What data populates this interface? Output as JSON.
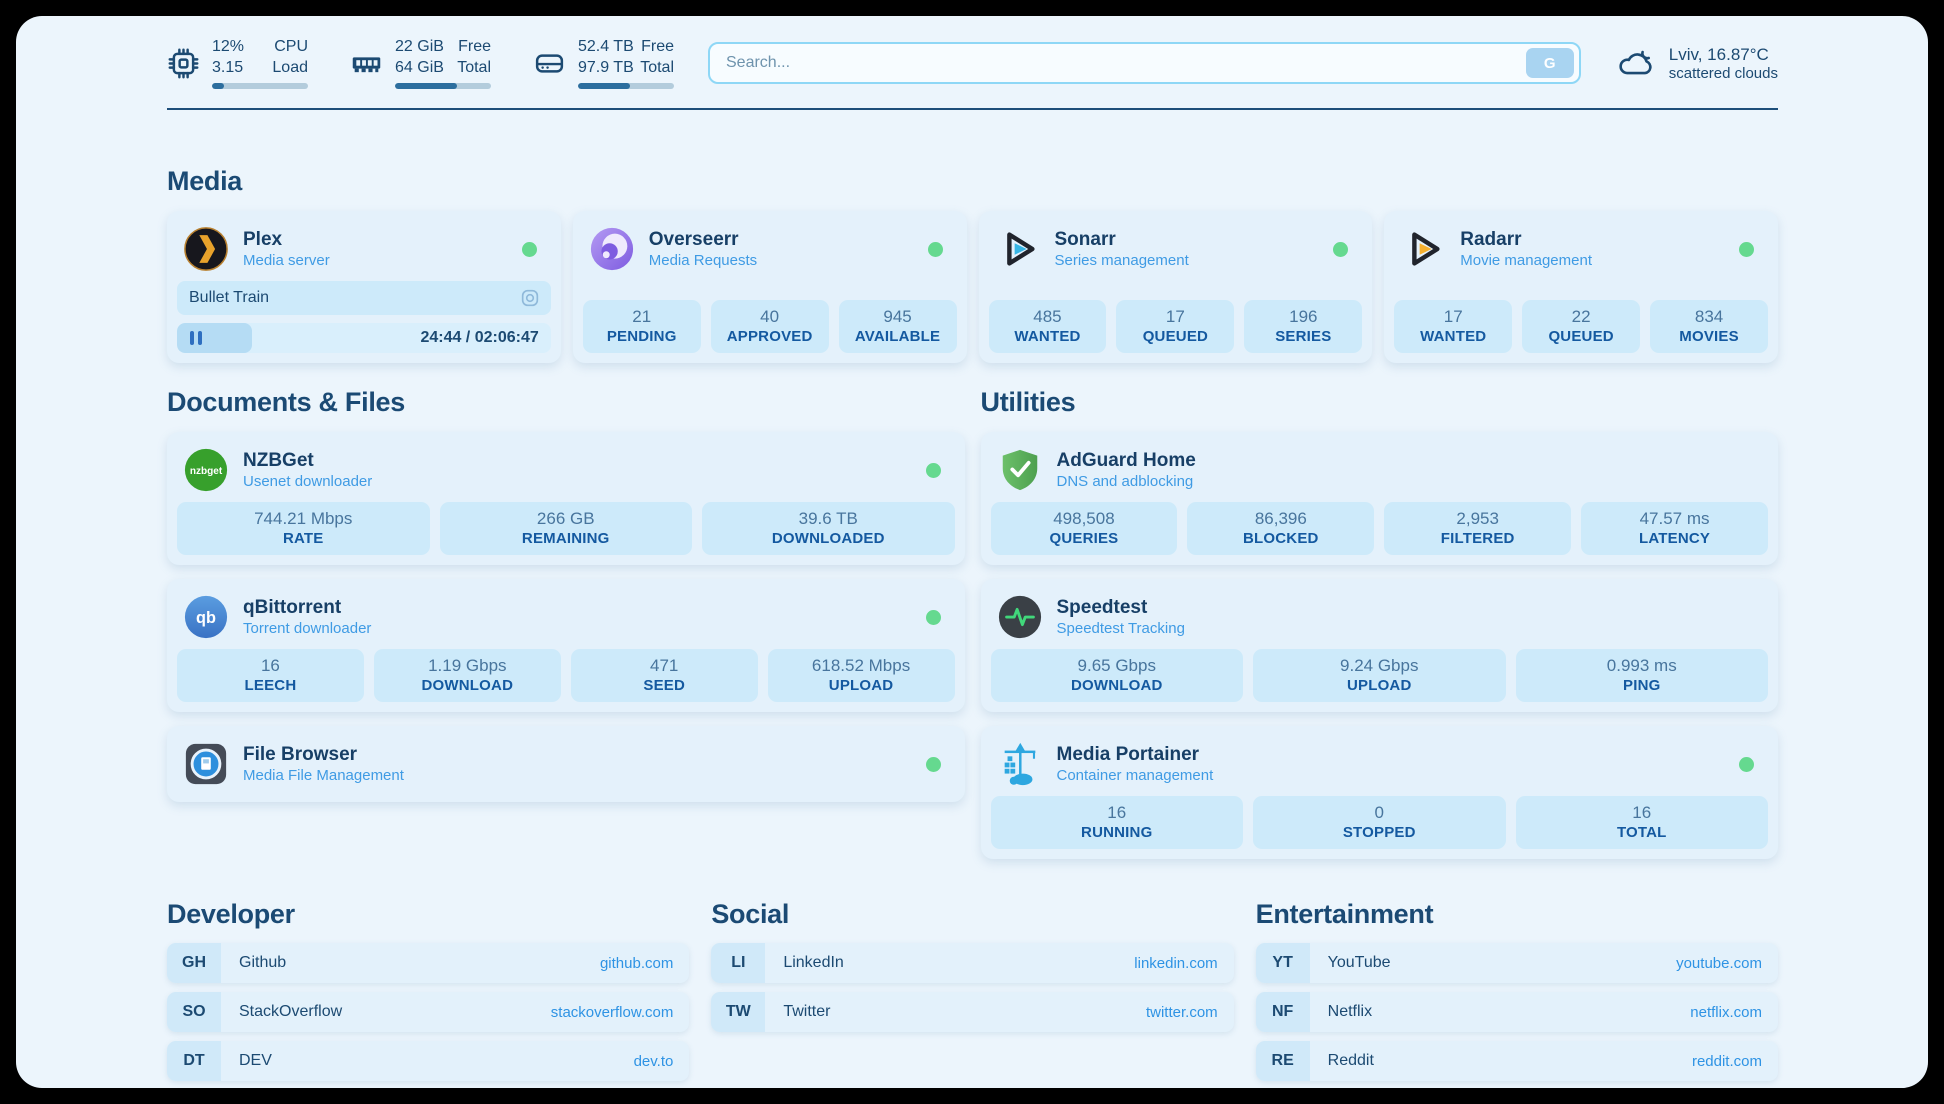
{
  "topbar": {
    "cpu": {
      "icon": "cpu-icon",
      "value_top": "12%",
      "value_bottom": "3.15",
      "label_top": "CPU",
      "label_bottom": "Load",
      "progress": 13
    },
    "ram": {
      "icon": "ram-icon",
      "value_top": "22 GiB",
      "value_bottom": "64 GiB",
      "label_top": "Free",
      "label_bottom": "Total",
      "progress": 65
    },
    "disk": {
      "icon": "disk-icon",
      "value_top": "52.4 TB",
      "value_bottom": "97.9 TB",
      "label_top": "Free",
      "label_bottom": "Total",
      "progress": 54
    },
    "search": {
      "placeholder": "Search...",
      "button_label": "G"
    },
    "weather": {
      "icon": "cloud-icon",
      "location": "Lviv, 16.87°C",
      "condition": "scattered clouds"
    }
  },
  "colors": {
    "status_green": "#65d98f",
    "link_blue": "#2e93e4",
    "navy": "#1c4a72",
    "stat_box": "#cdeafa"
  },
  "media": {
    "title": "Media",
    "plex": {
      "icon": "plex-icon",
      "name": "Plex",
      "desc": "Media server",
      "now_playing": "Bullet Train",
      "time": "24:44 / 02:06:47",
      "progress": 20
    },
    "overseerr": {
      "icon": "overseerr-icon",
      "name": "Overseerr",
      "desc": "Media Requests",
      "stats": [
        {
          "value": "21",
          "label": "PENDING"
        },
        {
          "value": "40",
          "label": "APPROVED"
        },
        {
          "value": "945",
          "label": "AVAILABLE"
        }
      ]
    },
    "sonarr": {
      "icon": "sonarr-icon",
      "name": "Sonarr",
      "desc": "Series management",
      "stats": [
        {
          "value": "485",
          "label": "WANTED"
        },
        {
          "value": "17",
          "label": "QUEUED"
        },
        {
          "value": "196",
          "label": "SERIES"
        }
      ]
    },
    "radarr": {
      "icon": "radarr-icon",
      "name": "Radarr",
      "desc": "Movie management",
      "stats": [
        {
          "value": "17",
          "label": "WANTED"
        },
        {
          "value": "22",
          "label": "QUEUED"
        },
        {
          "value": "834",
          "label": "MOVIES"
        }
      ]
    }
  },
  "documents": {
    "title": "Documents & Files",
    "nzbget": {
      "icon": "nzbget-icon",
      "name": "NZBGet",
      "desc": "Usenet downloader",
      "stats": [
        {
          "value": "744.21 Mbps",
          "label": "RATE"
        },
        {
          "value": "266 GB",
          "label": "REMAINING"
        },
        {
          "value": "39.6 TB",
          "label": "DOWNLOADED"
        }
      ]
    },
    "qbittorrent": {
      "icon": "qbittorrent-icon",
      "name": "qBittorrent",
      "desc": "Torrent downloader",
      "stats": [
        {
          "value": "16",
          "label": "LEECH"
        },
        {
          "value": "1.19 Gbps",
          "label": "DOWNLOAD"
        },
        {
          "value": "471",
          "label": "SEED"
        },
        {
          "value": "618.52 Mbps",
          "label": "UPLOAD"
        }
      ]
    },
    "filebrowser": {
      "icon": "filebrowser-icon",
      "name": "File Browser",
      "desc": "Media File Management"
    }
  },
  "utilities": {
    "title": "Utilities",
    "adguard": {
      "icon": "adguard-icon",
      "name": "AdGuard Home",
      "desc": "DNS and adblocking",
      "stats": [
        {
          "value": "498,508",
          "label": "QUERIES"
        },
        {
          "value": "86,396",
          "label": "BLOCKED"
        },
        {
          "value": "2,953",
          "label": "FILTERED"
        },
        {
          "value": "47.57 ms",
          "label": "LATENCY"
        }
      ]
    },
    "speedtest": {
      "icon": "speedtest-icon",
      "name": "Speedtest",
      "desc": "Speedtest Tracking",
      "stats": [
        {
          "value": "9.65 Gbps",
          "label": "DOWNLOAD"
        },
        {
          "value": "9.24 Gbps",
          "label": "UPLOAD"
        },
        {
          "value": "0.993 ms",
          "label": "PING"
        }
      ]
    },
    "portainer": {
      "icon": "portainer-icon",
      "name": "Media Portainer",
      "desc": "Container management",
      "stats": [
        {
          "value": "16",
          "label": "RUNNING"
        },
        {
          "value": "0",
          "label": "STOPPED"
        },
        {
          "value": "16",
          "label": "TOTAL"
        }
      ]
    }
  },
  "links": {
    "developer": {
      "title": "Developer",
      "items": [
        {
          "tag": "GH",
          "name": "Github",
          "url": "github.com"
        },
        {
          "tag": "SO",
          "name": "StackOverflow",
          "url": "stackoverflow.com"
        },
        {
          "tag": "DT",
          "name": "DEV",
          "url": "dev.to"
        }
      ]
    },
    "social": {
      "title": "Social",
      "items": [
        {
          "tag": "LI",
          "name": "LinkedIn",
          "url": "linkedin.com"
        },
        {
          "tag": "TW",
          "name": "Twitter",
          "url": "twitter.com"
        }
      ]
    },
    "entertainment": {
      "title": "Entertainment",
      "items": [
        {
          "tag": "YT",
          "name": "YouTube",
          "url": "youtube.com"
        },
        {
          "tag": "NF",
          "name": "Netflix",
          "url": "netflix.com"
        },
        {
          "tag": "RE",
          "name": "Reddit",
          "url": "reddit.com"
        }
      ]
    }
  }
}
